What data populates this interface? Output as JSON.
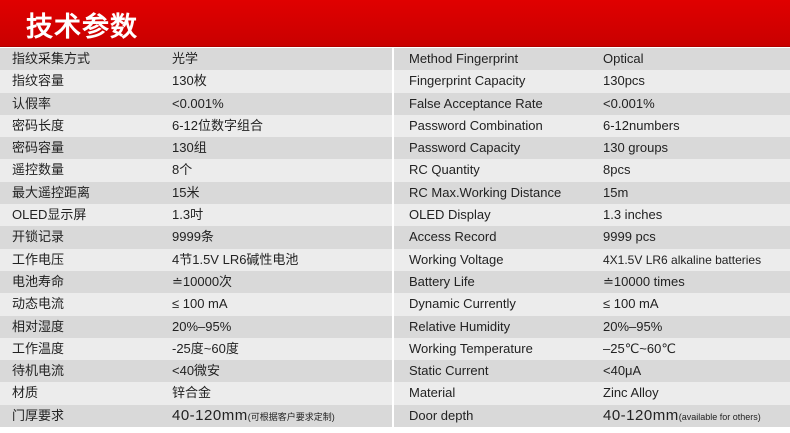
{
  "header": {
    "title": "技术参数",
    "color": "#d40000"
  },
  "rows": [
    {
      "cn_label": "指纹采集方式",
      "cn_value": "光学",
      "en_label": "Method Fingerprint",
      "en_value": "Optical"
    },
    {
      "cn_label": "指纹容量",
      "cn_value": "130枚",
      "en_label": "Fingerprint Capacity",
      "en_value": "130pcs"
    },
    {
      "cn_label": "认假率",
      "cn_value": "<0.001%",
      "en_label": "False Acceptance Rate",
      "en_value": "<0.001%"
    },
    {
      "cn_label": "密码长度",
      "cn_value": "6-12位数字组合",
      "en_label": "Password Combination",
      "en_value": "6-12numbers"
    },
    {
      "cn_label": "密码容量",
      "cn_value": "130组",
      "en_label": "Password Capacity",
      "en_value": "130 groups"
    },
    {
      "cn_label": "遥控数量",
      "cn_value": "8个",
      "en_label": "RC  Quantity",
      "en_value": "8pcs"
    },
    {
      "cn_label": "最大遥控距离",
      "cn_value": "15米",
      "en_label": "RC  Max.Working Distance",
      "en_value": "15m"
    },
    {
      "cn_label": "OLED显示屏",
      "cn_value": "1.3吋",
      "en_label": "OLED  Display",
      "en_value": "1.3 inches"
    },
    {
      "cn_label": "开锁记录",
      "cn_value": "9999条",
      "en_label": "Access Record",
      "en_value": "9999 pcs"
    },
    {
      "cn_label": "工作电压",
      "cn_value": "4节1.5V LR6碱性电池",
      "en_label": "Working Voltage",
      "en_value": "4X1.5V LR6 alkaline batteries"
    },
    {
      "cn_label": "电池寿命",
      "cn_value": "≐10000次",
      "en_label": "Battery Life",
      "en_value": "≐10000 times"
    },
    {
      "cn_label": "动态电流",
      "cn_value": "≤ 100 mA",
      "en_label": "Dynamic Currently",
      "en_value": "≤ 100 mA"
    },
    {
      "cn_label": "相对湿度",
      "cn_value": "20%–95%",
      "en_label": "Relative Humidity",
      "en_value": "20%–95%"
    },
    {
      "cn_label": "工作温度",
      "cn_value": "-25度~60度",
      "en_label": "Working Temperature",
      "en_value": "–25℃~60℃"
    },
    {
      "cn_label": "待机电流",
      "cn_value": "<40微安",
      "en_label": "Static Current",
      "en_value": "<40μA"
    },
    {
      "cn_label": "材质",
      "cn_value": "锌合金",
      "en_label": "Material",
      "en_value": "Zinc Alloy"
    },
    {
      "cn_label": "门厚要求",
      "cn_value": "40-120mm",
      "cn_note": "(可根据客户要求定制)",
      "en_label": "Door depth",
      "en_value": "40-120mm",
      "en_note": "(available for others)"
    }
  ]
}
